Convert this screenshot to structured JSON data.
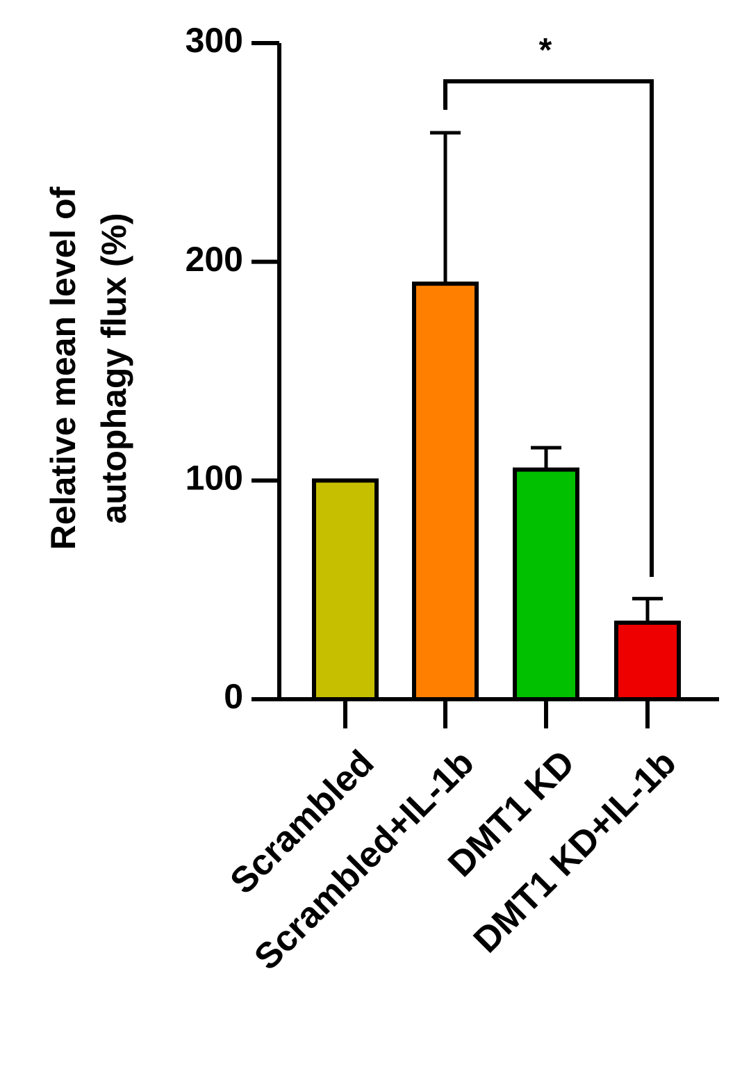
{
  "chart_data": {
    "type": "bar",
    "ylabel": [
      "Relative mean level of",
      "autophagy flux (%)"
    ],
    "categories": [
      "Scrambled",
      "Scrambled+IL-1b",
      "DMT1 KD",
      "DMT1 KD+IL-1b"
    ],
    "values": [
      100,
      190,
      105,
      35
    ],
    "errors": [
      null,
      69,
      10,
      11
    ],
    "colors": [
      "#c6bf00",
      "#ff8000",
      "#00c000",
      "#ee0000"
    ],
    "ylim": [
      0,
      300
    ],
    "yticks": [
      0,
      100,
      200,
      300
    ],
    "annotations": [
      {
        "text": "*"
      }
    ]
  }
}
